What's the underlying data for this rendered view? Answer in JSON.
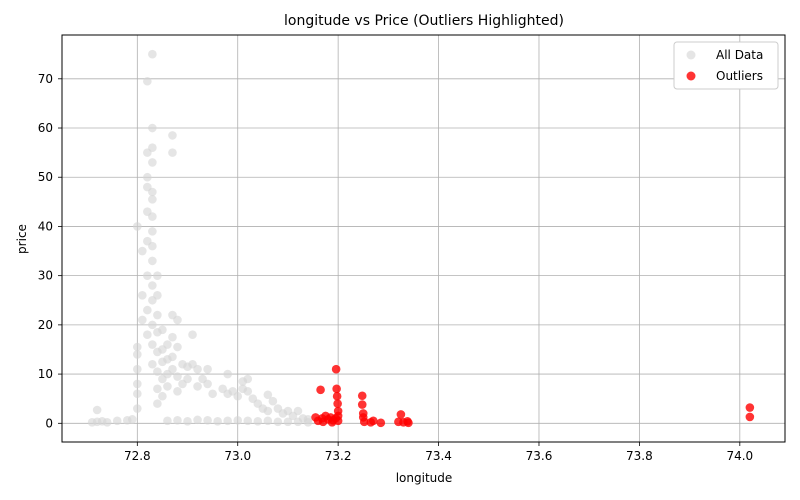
{
  "chart_data": {
    "type": "scatter",
    "title": "longitude vs Price (Outliers Highlighted)",
    "xlabel": "longitude",
    "ylabel": "price",
    "xlim": [
      72.65,
      74.09
    ],
    "ylim": [
      -3.8,
      78.9
    ],
    "xticks": [
      72.8,
      73.0,
      73.2,
      73.4,
      73.6,
      73.8,
      74.0
    ],
    "xtick_labels": [
      "72.8",
      "73.0",
      "73.2",
      "73.4",
      "73.6",
      "73.8",
      "74.0"
    ],
    "yticks": [
      0,
      10,
      20,
      30,
      40,
      50,
      60,
      70
    ],
    "ytick_labels": [
      "0",
      "10",
      "20",
      "30",
      "40",
      "50",
      "60",
      "70"
    ],
    "grid": true,
    "legend_position": "top-right",
    "series": [
      {
        "name": "All Data",
        "color": "#d3d3d3",
        "opacity": 0.6,
        "points": [
          [
            72.71,
            0.2
          ],
          [
            72.72,
            0.3
          ],
          [
            72.73,
            0.4
          ],
          [
            72.72,
            2.7
          ],
          [
            72.74,
            0.2
          ],
          [
            72.76,
            0.5
          ],
          [
            72.78,
            0.6
          ],
          [
            72.79,
            0.8
          ],
          [
            72.8,
            3.0
          ],
          [
            72.8,
            6.0
          ],
          [
            72.8,
            8.0
          ],
          [
            72.8,
            11.0
          ],
          [
            72.8,
            14.0
          ],
          [
            72.8,
            15.5
          ],
          [
            72.81,
            21.0
          ],
          [
            72.81,
            26.0
          ],
          [
            72.8,
            40.0
          ],
          [
            72.81,
            35.0
          ],
          [
            72.82,
            18.0
          ],
          [
            72.82,
            23.0
          ],
          [
            72.82,
            30.0
          ],
          [
            72.82,
            37.0
          ],
          [
            72.82,
            43.0
          ],
          [
            72.82,
            48.0
          ],
          [
            72.82,
            50.0
          ],
          [
            72.82,
            55.0
          ],
          [
            72.82,
            69.5
          ],
          [
            72.83,
            75.0
          ],
          [
            72.83,
            60.0
          ],
          [
            72.83,
            56.0
          ],
          [
            72.83,
            53.0
          ],
          [
            72.83,
            47.0
          ],
          [
            72.83,
            45.5
          ],
          [
            72.83,
            42.0
          ],
          [
            72.83,
            39.0
          ],
          [
            72.83,
            36.0
          ],
          [
            72.83,
            33.0
          ],
          [
            72.83,
            28.0
          ],
          [
            72.83,
            25.0
          ],
          [
            72.83,
            20.0
          ],
          [
            72.83,
            16.0
          ],
          [
            72.83,
            12.0
          ],
          [
            72.84,
            30.0
          ],
          [
            72.84,
            26.0
          ],
          [
            72.84,
            22.0
          ],
          [
            72.84,
            18.5
          ],
          [
            72.84,
            14.5
          ],
          [
            72.84,
            10.5
          ],
          [
            72.84,
            7.0
          ],
          [
            72.84,
            4.0
          ],
          [
            72.85,
            19.0
          ],
          [
            72.85,
            15.0
          ],
          [
            72.85,
            12.5
          ],
          [
            72.85,
            9.0
          ],
          [
            72.85,
            5.5
          ],
          [
            72.86,
            16.0
          ],
          [
            72.86,
            13.0
          ],
          [
            72.86,
            10.0
          ],
          [
            72.86,
            7.5
          ],
          [
            72.87,
            58.5
          ],
          [
            72.87,
            55.0
          ],
          [
            72.87,
            22.0
          ],
          [
            72.87,
            17.5
          ],
          [
            72.87,
            13.5
          ],
          [
            72.87,
            11.0
          ],
          [
            72.88,
            21.0
          ],
          [
            72.88,
            15.5
          ],
          [
            72.88,
            9.5
          ],
          [
            72.88,
            6.5
          ],
          [
            72.89,
            12.0
          ],
          [
            72.89,
            8.0
          ],
          [
            72.9,
            11.5
          ],
          [
            72.9,
            9.0
          ],
          [
            72.91,
            18.0
          ],
          [
            72.91,
            12.0
          ],
          [
            72.92,
            11.0
          ],
          [
            72.92,
            7.5
          ],
          [
            72.93,
            9.0
          ],
          [
            72.94,
            11.0
          ],
          [
            72.94,
            8.0
          ],
          [
            72.95,
            6.0
          ],
          [
            72.97,
            7.0
          ],
          [
            72.98,
            10.0
          ],
          [
            72.98,
            6.0
          ],
          [
            72.99,
            6.5
          ],
          [
            73.0,
            5.5
          ],
          [
            73.01,
            7.0
          ],
          [
            73.01,
            8.5
          ],
          [
            73.02,
            9.0
          ],
          [
            73.02,
            6.5
          ],
          [
            73.03,
            5.0
          ],
          [
            73.04,
            4.0
          ],
          [
            73.05,
            3.0
          ],
          [
            73.06,
            2.5
          ],
          [
            73.06,
            5.8
          ],
          [
            73.07,
            4.5
          ],
          [
            73.08,
            3.0
          ],
          [
            73.09,
            2.0
          ],
          [
            73.1,
            2.5
          ],
          [
            73.11,
            1.5
          ],
          [
            73.12,
            2.5
          ],
          [
            73.13,
            1.0
          ],
          [
            73.14,
            0.8
          ],
          [
            72.86,
            0.5
          ],
          [
            72.88,
            0.6
          ],
          [
            72.9,
            0.4
          ],
          [
            72.92,
            0.7
          ],
          [
            72.94,
            0.6
          ],
          [
            72.96,
            0.4
          ],
          [
            72.98,
            0.5
          ],
          [
            73.0,
            0.6
          ],
          [
            73.02,
            0.5
          ],
          [
            73.04,
            0.4
          ],
          [
            73.06,
            0.5
          ],
          [
            73.08,
            0.3
          ],
          [
            73.1,
            0.3
          ],
          [
            73.12,
            0.3
          ],
          [
            73.14,
            0.2
          ]
        ]
      },
      {
        "name": "Outliers",
        "color": "#ff0000",
        "opacity": 0.8,
        "points": [
          [
            73.155,
            1.2
          ],
          [
            73.16,
            0.5
          ],
          [
            73.165,
            6.8
          ],
          [
            73.168,
            1.0
          ],
          [
            73.17,
            0.3
          ],
          [
            73.175,
            1.5
          ],
          [
            73.18,
            0.8
          ],
          [
            73.185,
            1.2
          ],
          [
            73.188,
            0.2
          ],
          [
            73.19,
            0.6
          ],
          [
            73.195,
            1.0
          ],
          [
            73.196,
            11.0
          ],
          [
            73.197,
            7.0
          ],
          [
            73.198,
            5.5
          ],
          [
            73.199,
            4.0
          ],
          [
            73.2,
            2.5
          ],
          [
            73.2,
            1.5
          ],
          [
            73.2,
            0.5
          ],
          [
            73.248,
            5.6
          ],
          [
            73.248,
            3.8
          ],
          [
            73.25,
            2.0
          ],
          [
            73.25,
            1.2
          ],
          [
            73.252,
            0.3
          ],
          [
            73.265,
            0.2
          ],
          [
            73.27,
            0.5
          ],
          [
            73.285,
            0.1
          ],
          [
            73.32,
            0.3
          ],
          [
            73.325,
            1.8
          ],
          [
            73.33,
            0.2
          ],
          [
            73.338,
            0.4
          ],
          [
            73.34,
            0.1
          ],
          [
            74.02,
            3.2
          ],
          [
            74.02,
            1.3
          ]
        ]
      }
    ]
  }
}
